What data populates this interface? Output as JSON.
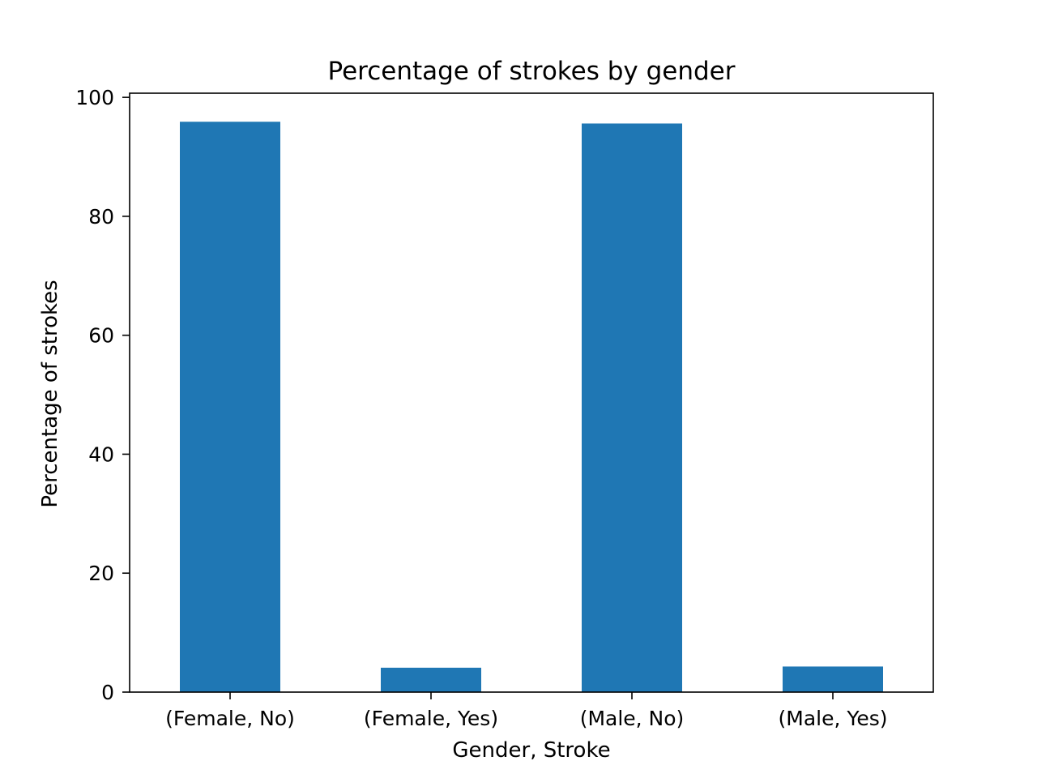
{
  "chart_data": {
    "type": "bar",
    "title": "Percentage of strokes by gender",
    "xlabel": "Gender, Stroke",
    "ylabel": "Percentage of strokes",
    "categories": [
      "(Female, No)",
      "(Female, Yes)",
      "(Male, No)",
      "(Male, Yes)"
    ],
    "values": [
      95.9,
      4.1,
      95.6,
      4.3
    ],
    "ylim": [
      0,
      100.7
    ],
    "yticks": [
      0,
      20,
      40,
      60,
      80,
      100
    ],
    "ytick_labels": [
      "0",
      "20",
      "40",
      "60",
      "80",
      "100"
    ],
    "grid": false,
    "legend": "none",
    "bar_color": "#1f77b4"
  }
}
